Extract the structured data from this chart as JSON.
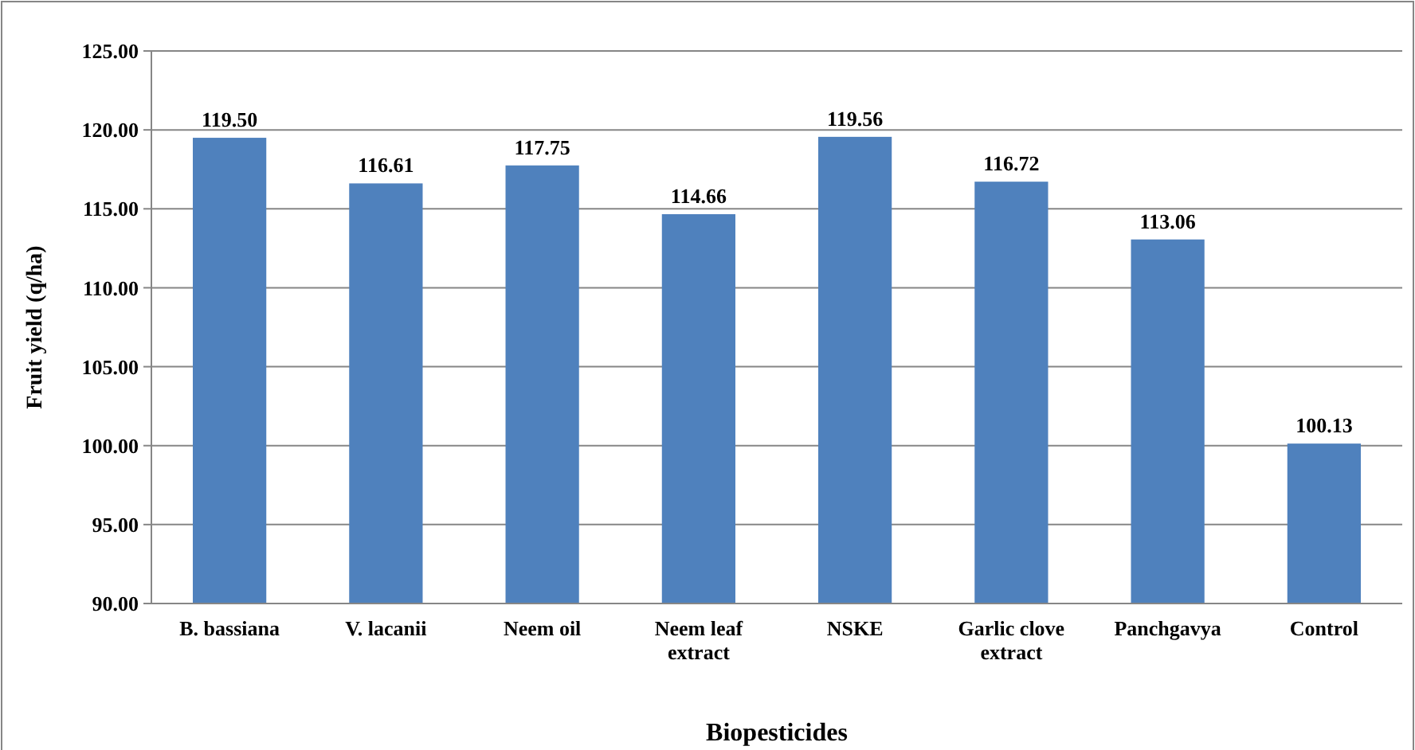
{
  "chart_data": {
    "type": "bar",
    "xlabel": "Biopesticides",
    "ylabel": "Fruit yield (q/ha)",
    "categories": [
      "B. bassiana",
      "V. lacanii",
      "Neem oil",
      "Neem leaf extract",
      "NSKE",
      "Garlic clove extract",
      "Panchgavya",
      "Control"
    ],
    "values": [
      119.5,
      116.61,
      117.75,
      114.66,
      119.56,
      116.72,
      113.06,
      100.13
    ],
    "value_labels": [
      "119.50",
      "116.61",
      "117.75",
      "114.66",
      "119.56",
      "116.72",
      "113.06",
      "100.13"
    ],
    "color": "#4f81bd",
    "ylim": [
      90,
      125
    ],
    "yticks": [
      {
        "value": 90,
        "label": "90.00"
      },
      {
        "value": 95,
        "label": "95.00"
      },
      {
        "value": 100,
        "label": "100.00"
      },
      {
        "value": 105,
        "label": "105.00"
      },
      {
        "value": 110,
        "label": "110.00"
      },
      {
        "value": 115,
        "label": "115.00"
      },
      {
        "value": 120,
        "label": "120.00"
      },
      {
        "value": 125,
        "label": "125.00"
      }
    ],
    "grid": "y"
  }
}
